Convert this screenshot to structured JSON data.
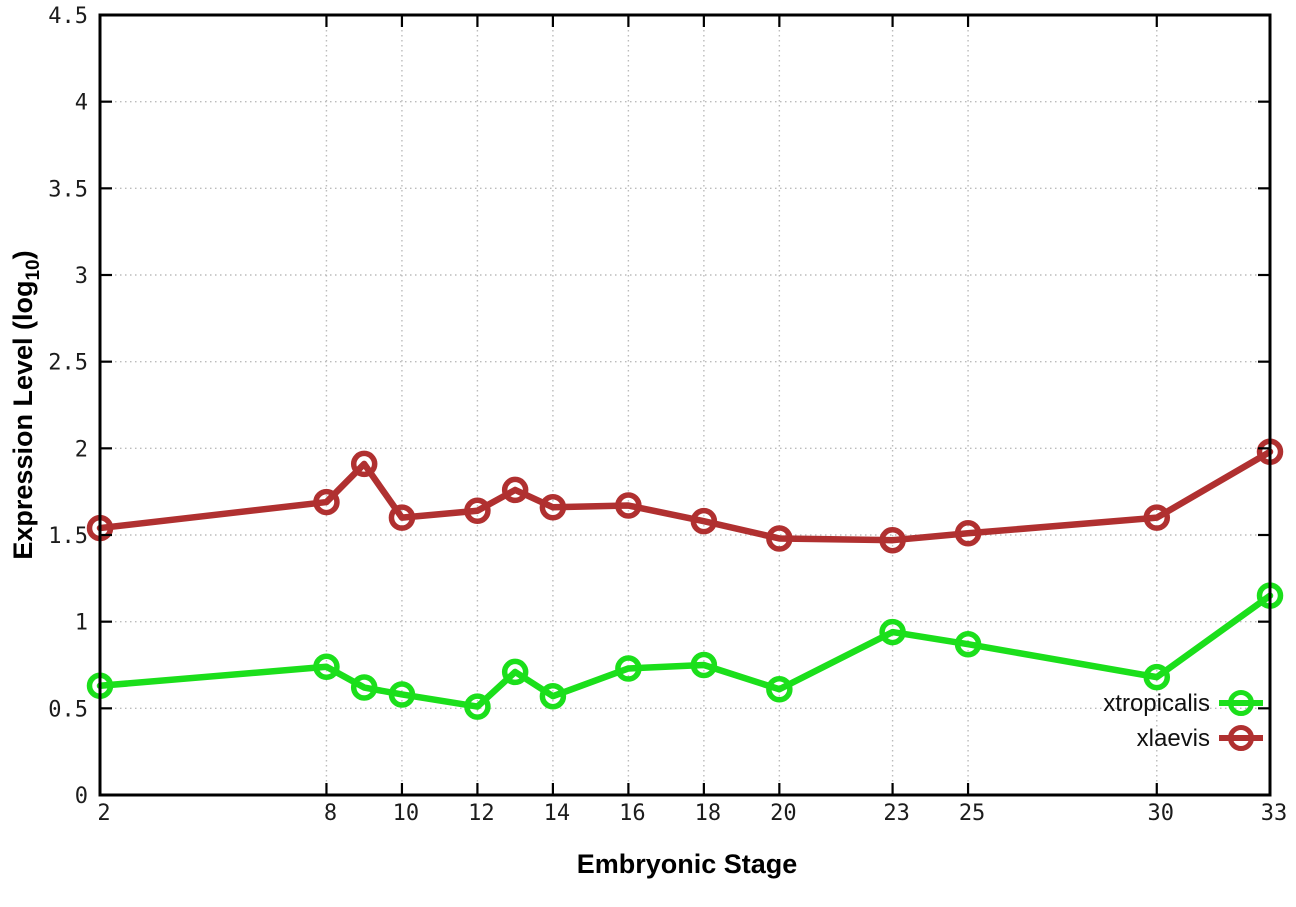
{
  "chart_data": {
    "type": "line",
    "title": "",
    "xlabel": "Embryonic Stage",
    "ylabel": "Expression Level (log10)",
    "ylabel_parts": {
      "base": "Expression Level (log",
      "sub": "10",
      "close": ")"
    },
    "x": [
      2,
      8,
      9,
      10,
      12,
      13,
      14,
      16,
      18,
      20,
      23,
      25,
      30,
      33
    ],
    "series": [
      {
        "name": "xtropicalis",
        "color": "#1bdf1b",
        "values": [
          0.63,
          0.74,
          0.62,
          0.58,
          0.51,
          0.71,
          0.57,
          0.73,
          0.75,
          0.61,
          0.94,
          0.87,
          0.68,
          1.15
        ]
      },
      {
        "name": "xlaevis",
        "color": "#b03030",
        "values": [
          1.54,
          1.69,
          1.91,
          1.6,
          1.64,
          1.76,
          1.66,
          1.67,
          1.58,
          1.48,
          1.47,
          1.51,
          1.6,
          1.98
        ]
      }
    ],
    "xlim": [
      2,
      33
    ],
    "ylim": [
      0,
      4.5
    ],
    "xtick_values": [
      2,
      8,
      10,
      12,
      14,
      16,
      18,
      20,
      23,
      25,
      30,
      33
    ],
    "xtick_labels": [
      "2",
      "8",
      "10",
      "12",
      "14",
      "16",
      "18",
      "20",
      "23",
      "25",
      "30",
      "33"
    ],
    "ytick_values": [
      0,
      0.5,
      1,
      1.5,
      2,
      2.5,
      3,
      3.5,
      4,
      4.5
    ],
    "ytick_labels": [
      "0",
      "0.5",
      "1",
      "1.5",
      "2",
      "2.5",
      "3",
      "3.5",
      "4",
      "4.5"
    ],
    "grid": true,
    "legend_position": "inside-bottom-right",
    "colors": {
      "background": "#ffffff",
      "grid": "#bbbbbb",
      "axis": "#000000",
      "tick_text": "#1c1c1c"
    }
  }
}
